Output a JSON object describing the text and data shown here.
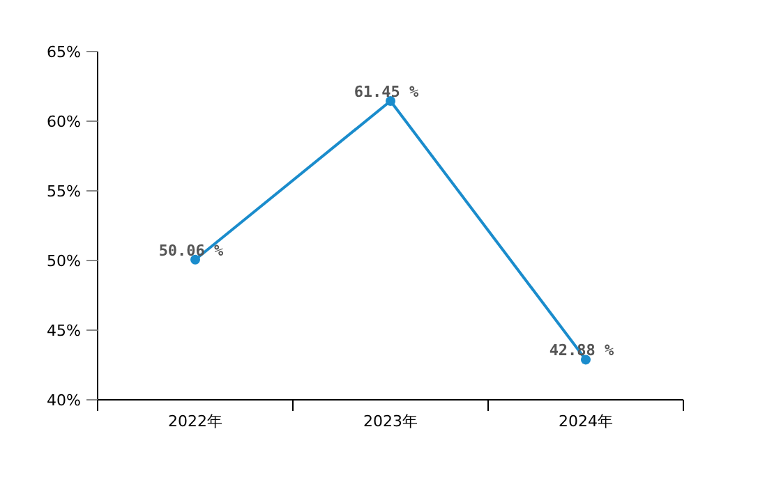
{
  "chart_data": {
    "type": "line",
    "categories": [
      "2022年",
      "2023年",
      "2024年"
    ],
    "values": [
      50.06,
      61.45,
      42.88
    ],
    "value_labels": [
      "50.06 %",
      "61.45 %",
      "42.88 %"
    ],
    "color": "#1a8ccc",
    "marker": "circle",
    "ylim": [
      40,
      65
    ],
    "yticks": [
      {
        "value": 40,
        "label": "40%"
      },
      {
        "value": 45,
        "label": "45%"
      },
      {
        "value": 50,
        "label": "50%"
      },
      {
        "value": 55,
        "label": "55%"
      },
      {
        "value": 60,
        "label": "60%"
      },
      {
        "value": 65,
        "label": "65%"
      }
    ]
  }
}
